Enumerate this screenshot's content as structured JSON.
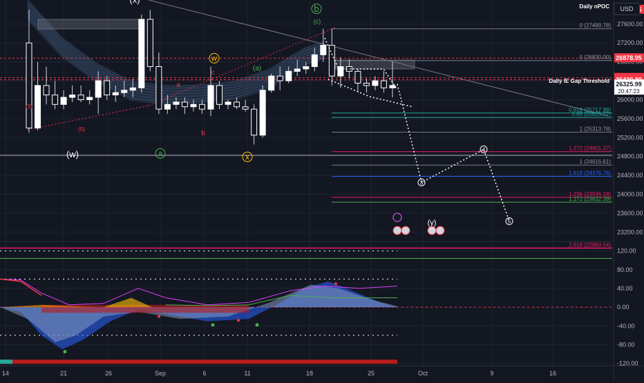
{
  "header": {
    "currency": "USD"
  },
  "colors": {
    "background": "#131722",
    "grid": "#1f2330",
    "axis_text": "#b2b5be",
    "bull": "#ffffff",
    "bear": "#ffffff",
    "red_level": "#f23645",
    "pink_level": "#e91e63",
    "green_level": "#4caf50",
    "blue_level": "#2962ff"
  },
  "chart_data": [
    {
      "type": "candlestick",
      "title": "",
      "x_ticks": [
        "14",
        "21",
        "26",
        "Sep",
        "6",
        "11",
        "18",
        "25",
        "Oct",
        "9",
        "16"
      ],
      "y_ticks": [
        27600,
        27200,
        26800,
        26400,
        26000,
        25600,
        25200,
        24800,
        24400,
        24000,
        23600,
        23200
      ],
      "ylim": [
        23000,
        28050
      ],
      "price_labels": [
        {
          "value": 27905.36,
          "label": "27905.36",
          "color": "#f23645"
        },
        {
          "value": 26878.95,
          "label": "26878.95",
          "color": "#f23645"
        },
        {
          "value": 26463.85,
          "label": "26463.85",
          "color": "#f23645"
        },
        {
          "value": 26420.8,
          "label": "26420.80",
          "color": "#f23645"
        },
        {
          "value": 26325.99,
          "label": "26325.99",
          "color": "#ffffff",
          "sublabel": "20:47:23"
        }
      ],
      "text_labels": [
        {
          "text": "Daily nPOC",
          "value": 27905.36
        },
        {
          "text": "Daily IE Gap Threshold",
          "value": 26325.99
        }
      ],
      "fib_levels": [
        {
          "label": "0 (27499.78)",
          "value": 27499.78,
          "color": "#787b86"
        },
        {
          "label": "0 (26830.00)",
          "value": 26830.0,
          "color": "#787b86"
        },
        {
          "label": "0.618 (25717.98)",
          "value": 25717.98,
          "color": "#26a69a"
        },
        {
          "label": "0.65 (25625.72)",
          "value": 25625.72,
          "color": "#26a69a"
        },
        {
          "label": "1 (25313.78)",
          "value": 25313.78,
          "color": "#787b86"
        },
        {
          "label": "1.272 (24901.37)",
          "value": 24901.37,
          "color": "#e91e63"
        },
        {
          "label": "1 (24616.61)",
          "value": 24616.61,
          "color": "#787b86"
        },
        {
          "label": "1.618 (24376.76)",
          "value": 24376.76,
          "color": "#2962ff"
        },
        {
          "label": "1.236 (23936.18)",
          "value": 23936.18,
          "color": "#e91e63"
        },
        {
          "label": "1.272 (23832.39)",
          "value": 23832.39,
          "color": "#4caf50"
        },
        {
          "label": "2.618 (22860.54)",
          "value": 22860.54,
          "color": "#e91e63"
        }
      ],
      "candles": [
        [
          27200,
          27900,
          25300,
          25400
        ],
        [
          25400,
          26800,
          25350,
          26300
        ],
        [
          26300,
          26700,
          25900,
          26100
        ],
        [
          26100,
          26400,
          25800,
          25900
        ],
        [
          25900,
          26200,
          25800,
          26050
        ],
        [
          26050,
          26300,
          25950,
          26100
        ],
        [
          26100,
          26300,
          25950,
          26000
        ],
        [
          26000,
          26200,
          25900,
          26050
        ],
        [
          26050,
          26600,
          25700,
          26400
        ],
        [
          26400,
          26500,
          26000,
          26100
        ],
        [
          26100,
          26300,
          25950,
          26150
        ],
        [
          26150,
          26400,
          26050,
          26200
        ],
        [
          26200,
          26450,
          26050,
          26250
        ],
        [
          26250,
          27800,
          26150,
          27700
        ],
        [
          27700,
          27900,
          26600,
          26700
        ],
        [
          26700,
          27000,
          25700,
          25800
        ],
        [
          25800,
          26100,
          25700,
          25900
        ],
        [
          25900,
          26050,
          25800,
          25950
        ],
        [
          25950,
          26050,
          25700,
          25850
        ],
        [
          25850,
          26000,
          25750,
          25900
        ],
        [
          25900,
          26000,
          25700,
          25800
        ],
        [
          25800,
          26700,
          25650,
          26300
        ],
        [
          26300,
          26400,
          25800,
          25900
        ],
        [
          25900,
          26000,
          25800,
          25950
        ],
        [
          25950,
          26050,
          25800,
          25850
        ],
        [
          25850,
          26000,
          25750,
          25800
        ],
        [
          25800,
          25900,
          25050,
          25250
        ],
        [
          25250,
          26300,
          25200,
          26200
        ],
        [
          26200,
          26550,
          26150,
          26500
        ],
        [
          26500,
          26700,
          26200,
          26400
        ],
        [
          26400,
          26700,
          26350,
          26600
        ],
        [
          26600,
          26850,
          26500,
          26650
        ],
        [
          26650,
          26800,
          26550,
          26700
        ],
        [
          26700,
          27100,
          26600,
          26950
        ],
        [
          26950,
          27500,
          26800,
          27150
        ],
        [
          27150,
          27500,
          26300,
          26500
        ],
        [
          26500,
          26900,
          26250,
          26700
        ],
        [
          26700,
          26850,
          26450,
          26600
        ],
        [
          26600,
          26650,
          26150,
          26350
        ],
        [
          26350,
          26450,
          26150,
          26300
        ],
        [
          26300,
          26500,
          26200,
          26400
        ],
        [
          26400,
          26600,
          26150,
          26250
        ],
        [
          26250,
          26800,
          26050,
          26300
        ]
      ],
      "wave_labels": [
        {
          "text": "(x)",
          "color": "#ffffff"
        },
        {
          "text": "(w)",
          "color": "#ffffff"
        },
        {
          "text": "a",
          "color": "#4caf50"
        },
        {
          "text": "b",
          "color": "#4caf50"
        },
        {
          "text": "(c)",
          "color": "#4caf50"
        },
        {
          "text": "(a)",
          "color": "#4caf50"
        },
        {
          "text": "w",
          "color": "#ffc107"
        },
        {
          "text": "x",
          "color": "#ffc107"
        },
        {
          "text": "c",
          "color": "#f23645"
        },
        {
          "text": "a",
          "color": "#f23645"
        },
        {
          "text": "b",
          "color": "#f23645"
        },
        {
          "text": "(5)",
          "color": "#f23645"
        },
        {
          "text": "(3)",
          "color": "#f23645"
        },
        {
          "text": "(y)",
          "color": "#ffffff"
        }
      ],
      "projection_points": [
        {
          "label": "3",
          "value": 24250
        },
        {
          "label": "4",
          "value": 24950
        },
        {
          "label": "5",
          "value": 23430
        }
      ]
    },
    {
      "type": "area",
      "title": "",
      "y_ticks": [
        120.0,
        80.0,
        40.0,
        0.0,
        -40.0,
        -80.0,
        -120.0
      ],
      "ylim": [
        -125,
        140
      ]
    }
  ]
}
